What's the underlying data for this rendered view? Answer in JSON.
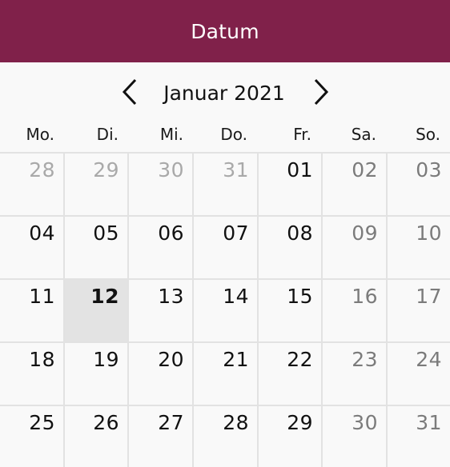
{
  "header": {
    "title": "Datum"
  },
  "nav": {
    "prev_icon": "chevron-left-icon",
    "next_icon": "chevron-right-icon",
    "month_label": "Januar 2021"
  },
  "weekdays": [
    "Mo.",
    "Di.",
    "Mi.",
    "Do.",
    "Fr.",
    "Sa.",
    "So."
  ],
  "weeks": [
    [
      {
        "label": "28",
        "state": "other"
      },
      {
        "label": "29",
        "state": "other"
      },
      {
        "label": "30",
        "state": "other"
      },
      {
        "label": "31",
        "state": "other"
      },
      {
        "label": "01",
        "state": "normal"
      },
      {
        "label": "02",
        "state": "weekend"
      },
      {
        "label": "03",
        "state": "weekend"
      }
    ],
    [
      {
        "label": "04",
        "state": "normal"
      },
      {
        "label": "05",
        "state": "normal"
      },
      {
        "label": "06",
        "state": "normal"
      },
      {
        "label": "07",
        "state": "normal"
      },
      {
        "label": "08",
        "state": "normal"
      },
      {
        "label": "09",
        "state": "weekend"
      },
      {
        "label": "10",
        "state": "weekend"
      }
    ],
    [
      {
        "label": "11",
        "state": "normal"
      },
      {
        "label": "12",
        "state": "today"
      },
      {
        "label": "13",
        "state": "normal"
      },
      {
        "label": "14",
        "state": "normal"
      },
      {
        "label": "15",
        "state": "normal"
      },
      {
        "label": "16",
        "state": "weekend"
      },
      {
        "label": "17",
        "state": "weekend"
      }
    ],
    [
      {
        "label": "18",
        "state": "normal"
      },
      {
        "label": "19",
        "state": "normal"
      },
      {
        "label": "20",
        "state": "normal"
      },
      {
        "label": "21",
        "state": "normal"
      },
      {
        "label": "22",
        "state": "normal"
      },
      {
        "label": "23",
        "state": "weekend"
      },
      {
        "label": "24",
        "state": "weekend"
      }
    ],
    [
      {
        "label": "25",
        "state": "normal"
      },
      {
        "label": "26",
        "state": "normal"
      },
      {
        "label": "27",
        "state": "normal"
      },
      {
        "label": "28",
        "state": "normal"
      },
      {
        "label": "29",
        "state": "normal"
      },
      {
        "label": "30",
        "state": "weekend"
      },
      {
        "label": "31",
        "state": "weekend"
      }
    ]
  ],
  "colors": {
    "header_bg": "#80214a",
    "today_bg": "#e3e3e3",
    "other_month_text": "#a9a9a9",
    "weekend_text": "#7b7b7b"
  }
}
